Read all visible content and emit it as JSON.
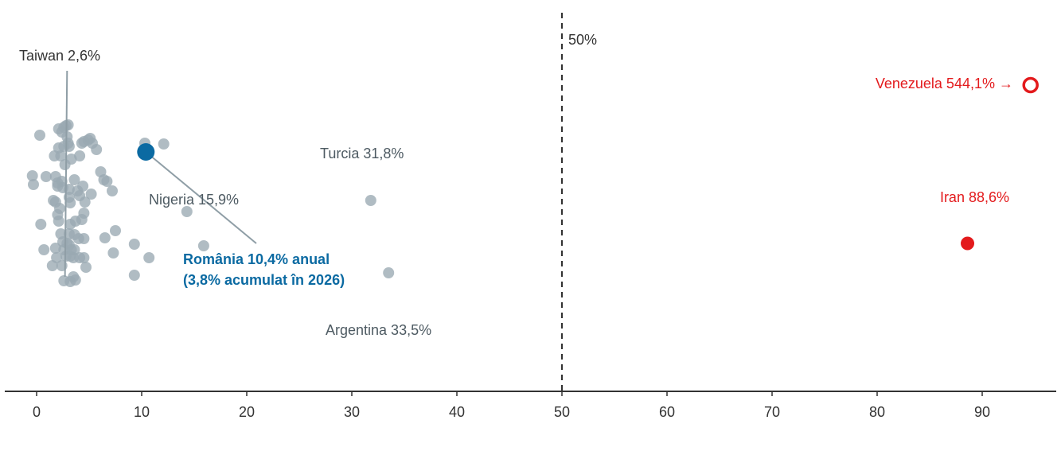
{
  "chart_data": {
    "type": "scatter",
    "xlim": [
      -3,
      97
    ],
    "xticks": [
      0,
      10,
      20,
      30,
      40,
      50,
      60,
      70,
      80,
      90
    ],
    "grid": false,
    "threshold": {
      "x": 50,
      "label": "50%"
    },
    "colors": {
      "gray": "#9aa9b2",
      "romania": "#0b6aa2",
      "red": "#e31a1c",
      "threshold": "#333333",
      "axis": "#333333"
    },
    "points_gray": [
      [
        0.3,
        170
      ],
      [
        2.1,
        162
      ],
      [
        2.4,
        166
      ],
      [
        2.6,
        160
      ],
      [
        2.8,
        158
      ],
      [
        3.0,
        157
      ],
      [
        2.9,
        172
      ],
      [
        3.0,
        180
      ],
      [
        2.1,
        186
      ],
      [
        2.6,
        184
      ],
      [
        3.1,
        184
      ],
      [
        1.7,
        196
      ],
      [
        2.3,
        196
      ],
      [
        3.3,
        200
      ],
      [
        4.1,
        196
      ],
      [
        4.3,
        180
      ],
      [
        4.5,
        178
      ],
      [
        4.9,
        176
      ],
      [
        5.1,
        174
      ],
      [
        5.3,
        180
      ],
      [
        5.7,
        188
      ],
      [
        2.7,
        207
      ],
      [
        -0.4,
        221
      ],
      [
        -0.3,
        232
      ],
      [
        0.9,
        222
      ],
      [
        1.8,
        222
      ],
      [
        2.0,
        230
      ],
      [
        2.0,
        234
      ],
      [
        2.4,
        228
      ],
      [
        2.5,
        236
      ],
      [
        3.1,
        238
      ],
      [
        3.6,
        226
      ],
      [
        3.9,
        240
      ],
      [
        4.4,
        234
      ],
      [
        5.2,
        244
      ],
      [
        6.1,
        216
      ],
      [
        6.4,
        226
      ],
      [
        6.7,
        228
      ],
      [
        7.2,
        240
      ],
      [
        1.6,
        252
      ],
      [
        1.8,
        254
      ],
      [
        2.2,
        262
      ],
      [
        2.0,
        270
      ],
      [
        3.1,
        248
      ],
      [
        3.2,
        255
      ],
      [
        4.1,
        246
      ],
      [
        4.6,
        254
      ],
      [
        3.7,
        278
      ],
      [
        3.2,
        282
      ],
      [
        4.3,
        276
      ],
      [
        4.5,
        268
      ],
      [
        2.1,
        278
      ],
      [
        0.4,
        282
      ],
      [
        2.3,
        294
      ],
      [
        3.1,
        294
      ],
      [
        3.6,
        295
      ],
      [
        4.0,
        300
      ],
      [
        4.5,
        300
      ],
      [
        2.5,
        304
      ],
      [
        2.9,
        306
      ],
      [
        3.1,
        308
      ],
      [
        1.8,
        312
      ],
      [
        2.6,
        314
      ],
      [
        3.3,
        314
      ],
      [
        3.6,
        314
      ],
      [
        0.7,
        314
      ],
      [
        1.9,
        324
      ],
      [
        2.8,
        322
      ],
      [
        3.2,
        322
      ],
      [
        3.5,
        324
      ],
      [
        4.1,
        324
      ],
      [
        4.5,
        324
      ],
      [
        1.5,
        334
      ],
      [
        2.4,
        334
      ],
      [
        4.7,
        336
      ],
      [
        3.5,
        348
      ],
      [
        3.7,
        352
      ],
      [
        3.2,
        354
      ],
      [
        2.6,
        353
      ],
      [
        6.5,
        299
      ],
      [
        7.5,
        290
      ],
      [
        7.3,
        318
      ],
      [
        9.3,
        307
      ],
      [
        10.7,
        324
      ],
      [
        9.3,
        346
      ],
      [
        10.3,
        180
      ],
      [
        12.1,
        181
      ],
      [
        14.3,
        266
      ],
      [
        15.9,
        309
      ],
      [
        31.8,
        252
      ],
      [
        33.5,
        343
      ]
    ],
    "romania": {
      "x": 10.4,
      "y": 191,
      "label": "România  10,4% anual",
      "label2": "(3,8% acumulat în 2026)"
    },
    "iran": {
      "x": 88.6,
      "y": 306,
      "label": "Iran  88,6%"
    },
    "venezuela": {
      "x": 94.6,
      "y": 107,
      "label": "Venezuela  544,1% →"
    },
    "annotations": {
      "taiwan": "Taiwan  2,6%",
      "turcia": "Turcia  31,8%",
      "nigeria": "Nigeria  15,9%",
      "argentina": "Argentina  33,5%"
    }
  }
}
